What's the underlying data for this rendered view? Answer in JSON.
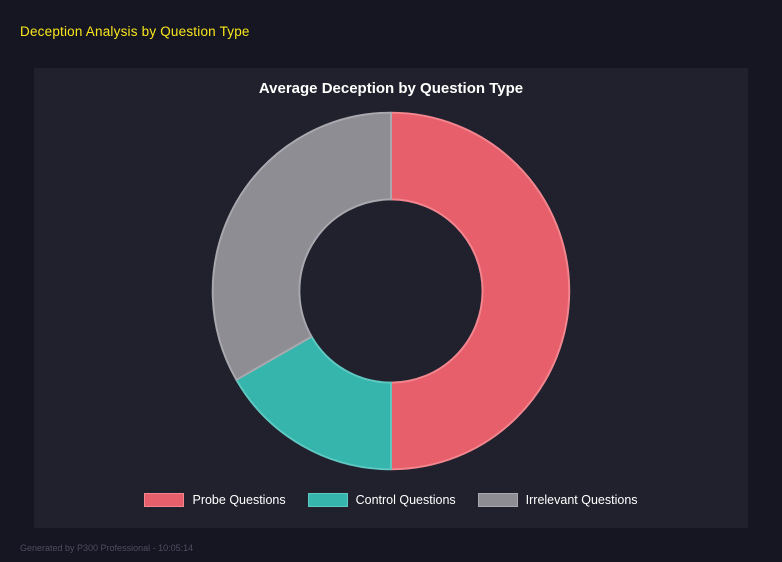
{
  "header": {
    "title": "Deception Analysis by Question Type"
  },
  "chart": {
    "title": "Average Deception by Question Type"
  },
  "chart_data": {
    "type": "pie",
    "subtype": "doughnut",
    "title": "Average Deception by Question Type",
    "categories": [
      "Probe Questions",
      "Control Questions",
      "Irrelevant Questions"
    ],
    "values": [
      50,
      16.7,
      33.3
    ],
    "value_unit": "percent of ring (estimated from segment angles)",
    "start_angle_deg": 0,
    "direction": "clockwise",
    "legend_position": "bottom",
    "colors": [
      "#e85f6c",
      "#35b5ac",
      "#8d8d93"
    ],
    "border_colors": [
      "#f2868f",
      "#5fc8c0",
      "#a8a8ae"
    ]
  },
  "footer": {
    "text": "Generated by P300 Professional - 10:05:14"
  },
  "theme": {
    "background": "#161622",
    "panel": "#21212d",
    "title_yellow": "#f8e71c",
    "text_white": "#ffffff",
    "footer_text": "#4d4d60"
  }
}
